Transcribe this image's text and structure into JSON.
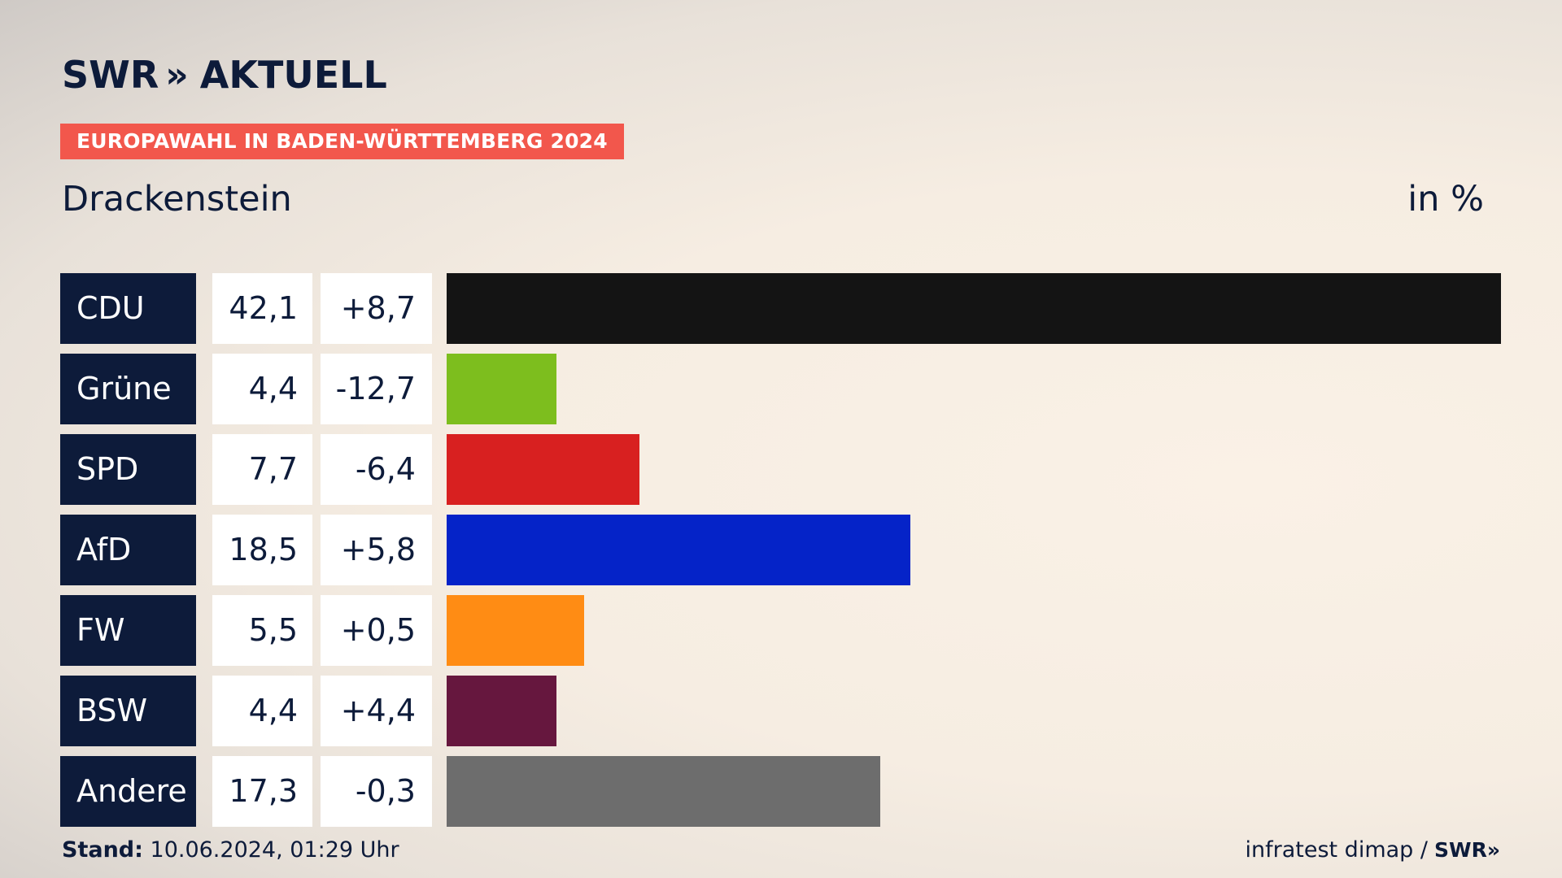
{
  "header": {
    "logo_text": "SWR",
    "logo_chevrons": "»",
    "logo_suffix": "AKTUELL",
    "banner": "EUROPAWAHL IN BADEN-WÜRTTEMBERG 2024",
    "place": "Drackenstein",
    "unit": "in %"
  },
  "chart_data": {
    "type": "bar",
    "orientation": "horizontal",
    "categories": [
      "CDU",
      "Grüne",
      "SPD",
      "AfD",
      "FW",
      "BSW",
      "Andere"
    ],
    "values": [
      42.1,
      4.4,
      7.7,
      18.5,
      5.5,
      4.4,
      17.3
    ],
    "value_labels": [
      "42,1",
      "4,4",
      "7,7",
      "18,5",
      "5,5",
      "4,4",
      "17,3"
    ],
    "diff_labels": [
      "+8,7",
      "-12,7",
      "-6,4",
      "+5,8",
      "+0,5",
      "+4,4",
      "-0,3"
    ],
    "colors": [
      "#141414",
      "#7dbe1e",
      "#d82020",
      "#0523c8",
      "#ff8c14",
      "#66173e",
      "#6d6d6d"
    ],
    "xlim": [
      0,
      42.1
    ]
  },
  "footer": {
    "stand_label": "Stand:",
    "stand_value": "10.06.2024, 01:29 Uhr",
    "source": "infratest dimap /",
    "brand": "SWR",
    "brand_chevrons": "»"
  }
}
